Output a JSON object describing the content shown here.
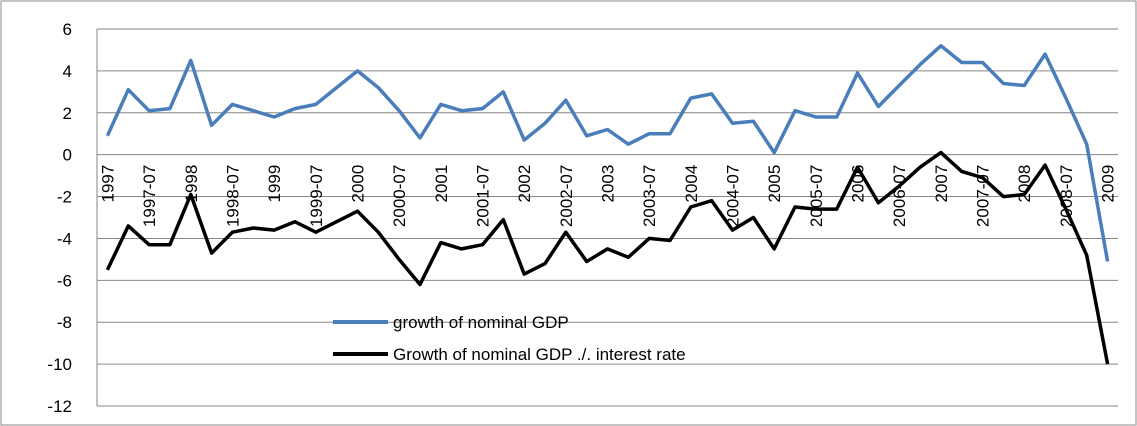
{
  "chart_data": {
    "type": "line",
    "categories": [
      "1997",
      null,
      "1997-07",
      null,
      "1998",
      null,
      "1998-07",
      null,
      "1999",
      null,
      "1999-07",
      null,
      "2000",
      null,
      "2000-07",
      null,
      "2001",
      null,
      "2001-07",
      null,
      "2002",
      null,
      "2002-07",
      null,
      "2003",
      null,
      "2003-07",
      null,
      "2004",
      null,
      "2004-07",
      null,
      "2005",
      null,
      "2005-07",
      null,
      "2006",
      null,
      "2006-07",
      null,
      "2007",
      null,
      "2007-07",
      null,
      "2008",
      null,
      "2008-07",
      null,
      "2009"
    ],
    "series": [
      {
        "name": "growth of nominal GDP",
        "color": "#4a7ebb",
        "values": [
          0.9,
          3.1,
          2.1,
          2.2,
          4.5,
          1.4,
          2.4,
          2.1,
          1.8,
          2.2,
          2.4,
          3.2,
          4.0,
          3.2,
          2.1,
          0.8,
          2.4,
          2.1,
          2.2,
          3.0,
          0.7,
          1.5,
          2.6,
          0.9,
          1.2,
          0.5,
          1.0,
          1.0,
          2.7,
          2.9,
          1.5,
          1.6,
          0.1,
          2.1,
          1.8,
          1.8,
          3.9,
          2.3,
          3.3,
          4.3,
          5.2,
          4.4,
          4.4,
          3.4,
          3.3,
          4.8,
          2.7,
          0.5,
          -5.1
        ]
      },
      {
        "name": "Growth of nominal GDP ./. interest rate",
        "color": "#000000",
        "values": [
          -5.5,
          -3.4,
          -4.3,
          -4.3,
          -1.9,
          -4.7,
          -3.7,
          -3.5,
          -3.6,
          -3.2,
          -3.7,
          -3.2,
          -2.7,
          -3.7,
          -5.0,
          -6.2,
          -4.2,
          -4.5,
          -4.3,
          -3.1,
          -5.7,
          -5.2,
          -3.7,
          -5.1,
          -4.5,
          -4.9,
          -4.0,
          -4.1,
          -2.5,
          -2.2,
          -3.6,
          -3.0,
          -4.5,
          -2.5,
          -2.6,
          -2.6,
          -0.6,
          -2.3,
          -1.5,
          -0.6,
          0.1,
          -0.8,
          -1.1,
          -2.0,
          -1.9,
          -0.5,
          -2.6,
          -4.8,
          -10.0
        ]
      }
    ],
    "ylim": [
      -12,
      6
    ],
    "yticks": [
      -12,
      -10,
      -8,
      -6,
      -4,
      -2,
      0,
      2,
      4,
      6
    ],
    "grid": true
  }
}
